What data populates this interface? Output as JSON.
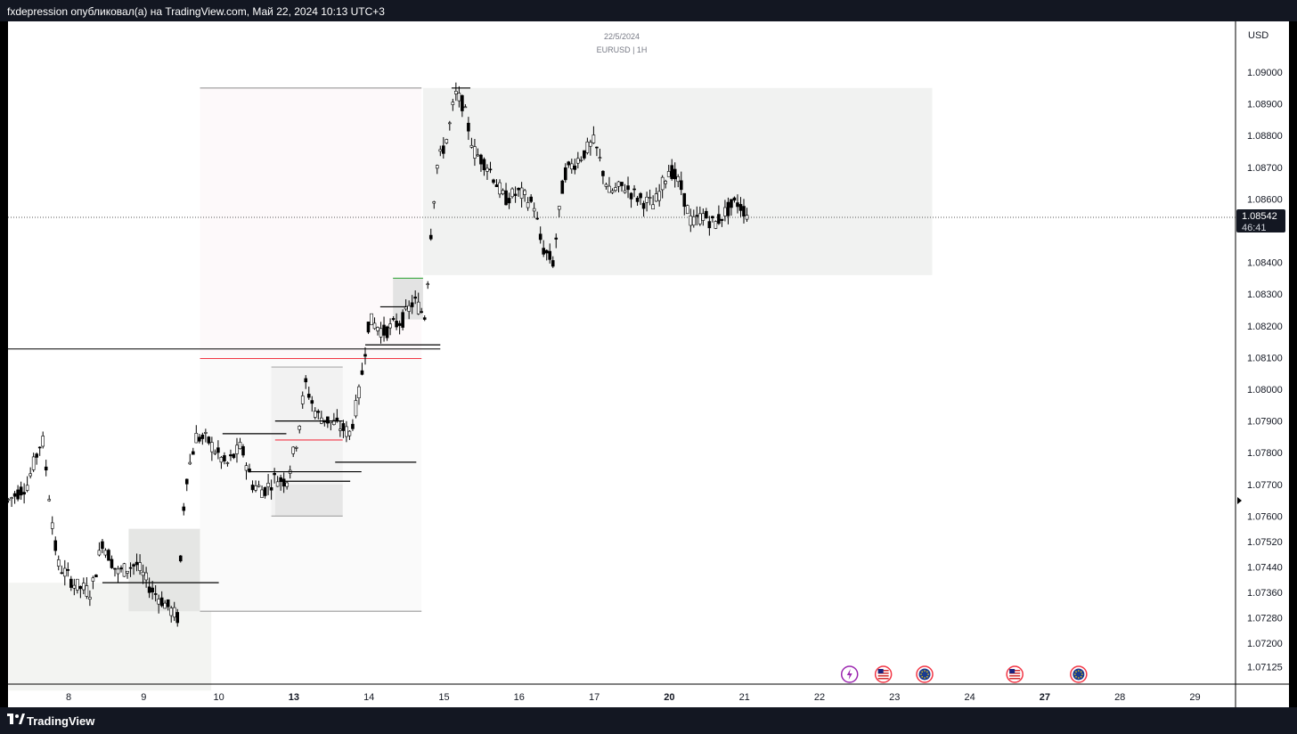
{
  "header": {
    "publisher_line": "fxdepression опубликовал(а) на TradingView.com, Май 22, 2024 10:13 UTC+3"
  },
  "footer": {
    "brand": "TradingView"
  },
  "chart_data": {
    "type": "candlestick",
    "date_label": "22/5/2024",
    "symbol_label": "EURUSD | 1H",
    "currency": "USD",
    "last_price": "1.08542",
    "countdown": "46:41",
    "x_ticks": [
      "8",
      "9",
      "10",
      "13",
      "14",
      "15",
      "16",
      "17",
      "20",
      "21",
      "22",
      "23",
      "24",
      "27",
      "28",
      "29"
    ],
    "x_ticks_bold": [
      "13",
      "20",
      "27"
    ],
    "y_ticks": [
      "1.09000",
      "1.08900",
      "1.08800",
      "1.08700",
      "1.08600",
      "1.08400",
      "1.08300",
      "1.08200",
      "1.08100",
      "1.08000",
      "1.07900",
      "1.07800",
      "1.07700",
      "1.07600",
      "1.07520",
      "1.07440",
      "1.07360",
      "1.07280",
      "1.07200",
      "1.07125"
    ],
    "y_tick_values": [
      1.09,
      1.089,
      1.088,
      1.087,
      1.086,
      1.084,
      1.083,
      1.082,
      1.081,
      1.08,
      1.079,
      1.078,
      1.077,
      1.076,
      1.0752,
      1.0744,
      1.0736,
      1.0728,
      1.072,
      1.07125
    ],
    "x_tick_days": [
      0,
      1,
      2,
      3,
      4,
      5,
      6,
      7,
      8,
      9,
      10,
      11,
      12,
      13,
      14,
      15
    ],
    "price_key_levels": [
      {
        "price": 1.08127,
        "color": "#000000"
      },
      {
        "price": 1.08097,
        "color": "#f23645"
      },
      {
        "price": 1.08542,
        "color": "#555555",
        "style": "dotted"
      }
    ],
    "ohlc_anchor_path": [
      [
        -0.8,
        1.0765
      ],
      [
        -0.55,
        1.077
      ],
      [
        -0.35,
        1.0785
      ],
      [
        -0.15,
        1.0745
      ],
      [
        0.1,
        1.0738
      ],
      [
        0.3,
        1.0736
      ],
      [
        0.45,
        1.0752
      ],
      [
        0.65,
        1.0742
      ],
      [
        0.9,
        1.0745
      ],
      [
        1.1,
        1.0737
      ],
      [
        1.3,
        1.0732
      ],
      [
        1.45,
        1.0728
      ],
      [
        1.55,
        1.077
      ],
      [
        1.7,
        1.0785
      ],
      [
        1.85,
        1.0784
      ],
      [
        2.1,
        1.0776
      ],
      [
        2.3,
        1.0782
      ],
      [
        2.45,
        1.077
      ],
      [
        2.6,
        1.0768
      ],
      [
        2.75,
        1.0772
      ],
      [
        2.9,
        1.0771
      ],
      [
        3.05,
        1.0785
      ],
      [
        3.15,
        1.0802
      ],
      [
        3.3,
        1.0792
      ],
      [
        3.55,
        1.0789
      ],
      [
        3.75,
        1.0786
      ],
      [
        3.88,
        1.08
      ],
      [
        4.0,
        1.0822
      ],
      [
        4.2,
        1.0818
      ],
      [
        4.45,
        1.0822
      ],
      [
        4.6,
        1.0828
      ],
      [
        4.75,
        1.0823
      ],
      [
        4.82,
        1.0848
      ],
      [
        4.9,
        1.087
      ],
      [
        5.05,
        1.088
      ],
      [
        5.15,
        1.0893
      ],
      [
        5.25,
        1.089
      ],
      [
        5.4,
        1.0875
      ],
      [
        5.6,
        1.087
      ],
      [
        5.8,
        1.086
      ],
      [
        6.0,
        1.0862
      ],
      [
        6.2,
        1.0858
      ],
      [
        6.3,
        1.0845
      ],
      [
        6.45,
        1.084
      ],
      [
        6.6,
        1.0868
      ],
      [
        6.8,
        1.0873
      ],
      [
        7.0,
        1.0878
      ],
      [
        7.2,
        1.0862
      ],
      [
        7.4,
        1.0864
      ],
      [
        7.6,
        1.086
      ],
      [
        7.8,
        1.0858
      ],
      [
        8.0,
        1.087
      ],
      [
        8.15,
        1.0864
      ],
      [
        8.3,
        1.0852
      ],
      [
        8.45,
        1.0855
      ],
      [
        8.6,
        1.0852
      ],
      [
        8.75,
        1.0856
      ],
      [
        8.9,
        1.0859
      ],
      [
        9.05,
        1.0855
      ]
    ],
    "zones": [
      {
        "d0": -0.8,
        "d1": 1.9,
        "p0": 1.0739,
        "p1": 1.0705,
        "fill": "#f3f4f2"
      },
      {
        "d0": 0.8,
        "d1": 1.75,
        "p0": 1.0756,
        "p1": 1.073,
        "fill": "#e5e6e4"
      },
      {
        "d0": 1.75,
        "d1": 4.7,
        "p0": 1.0895,
        "p1": 1.081,
        "fill": "#fdf9fa"
      },
      {
        "d0": 1.75,
        "d1": 4.7,
        "p0": 1.081,
        "p1": 1.073,
        "fill": "#fafafa"
      },
      {
        "d0": 2.7,
        "d1": 3.65,
        "p0": 1.0807,
        "p1": 1.076,
        "fill": "#f2f2f2"
      },
      {
        "d0": 2.75,
        "d1": 3.65,
        "p0": 1.077,
        "p1": 1.076,
        "fill": "#e6e6e6"
      },
      {
        "d0": 4.32,
        "d1": 4.72,
        "p0": 1.0835,
        "p1": 1.0822,
        "fill": "#e3e3e3"
      },
      {
        "d0": 4.72,
        "d1": 11.5,
        "p0": 1.0895,
        "p1": 1.0836,
        "fill": "#f1f2f1"
      }
    ],
    "segments": [
      {
        "d0": 1.75,
        "d1": 4.7,
        "p": 1.0895,
        "color": "#999999"
      },
      {
        "d0": 1.75,
        "d1": 4.7,
        "p": 1.073,
        "color": "#999999"
      },
      {
        "d0": 2.7,
        "d1": 3.65,
        "p": 1.0807,
        "color": "#aaaaaa"
      },
      {
        "d0": 2.7,
        "d1": 3.65,
        "p": 1.076,
        "color": "#aaaaaa"
      },
      {
        "d0": 0.45,
        "d1": 2.0,
        "p": 1.0739,
        "color": "#000000"
      },
      {
        "d0": 2.05,
        "d1": 2.9,
        "p": 1.0786,
        "color": "#000000"
      },
      {
        "d0": 2.4,
        "d1": 3.9,
        "p": 1.0774,
        "color": "#000000"
      },
      {
        "d0": 2.85,
        "d1": 3.75,
        "p": 1.0771,
        "color": "#000000"
      },
      {
        "d0": 2.75,
        "d1": 3.65,
        "p": 1.079,
        "color": "#000000"
      },
      {
        "d0": 2.75,
        "d1": 3.65,
        "p": 1.0784,
        "color": "#f23645"
      },
      {
        "d0": 3.55,
        "d1": 4.63,
        "p": 1.0777,
        "color": "#000000"
      },
      {
        "d0": 4.15,
        "d1": 4.5,
        "p": 1.0826,
        "color": "#000000"
      },
      {
        "d0": 3.95,
        "d1": 4.95,
        "p": 1.0814,
        "color": "#000000"
      },
      {
        "d0": 4.32,
        "d1": 4.72,
        "p": 1.0835,
        "color": "#4caf50"
      },
      {
        "d0": 5.1,
        "d1": 5.35,
        "p": 1.0895,
        "color": "#000000"
      }
    ],
    "colors": {
      "up": "#ffffff",
      "down": "#000000",
      "wick": "#000000",
      "pane_bg": "#ffffff",
      "axis_text": "#131722",
      "icon_flash": "#9c27b0",
      "icon_flag": "#f23645"
    },
    "events": [
      {
        "day": 10.4,
        "icon": "lightning-icon"
      },
      {
        "day": 10.85,
        "icon": "us-flag-icon"
      },
      {
        "day": 11.4,
        "icon": "eu-flag-icon"
      },
      {
        "day": 12.6,
        "icon": "us-flag-icon"
      },
      {
        "day": 13.45,
        "icon": "eu-flag-icon"
      }
    ]
  }
}
